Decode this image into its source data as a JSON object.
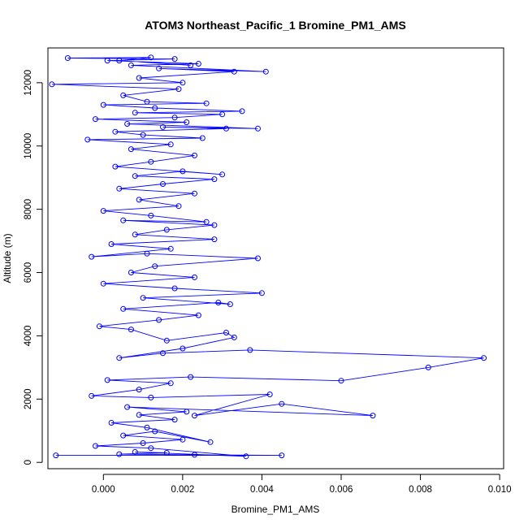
{
  "chart_data": {
    "type": "line",
    "title": "ATOM3 Northeast_Pacific_1 Bromine_PM1_AMS",
    "xlabel": "Bromine_PM1_AMS",
    "ylabel": "Altitude (m)",
    "xlim": [
      -0.0014,
      0.0101
    ],
    "ylim": [
      -200,
      13100
    ],
    "xticks": [
      0,
      0.002,
      0.004,
      0.006,
      0.008,
      0.01
    ],
    "xtick_labels": [
      "0.000",
      "0.002",
      "0.004",
      "0.006",
      "0.008",
      "0.010"
    ],
    "yticks": [
      0,
      2000,
      4000,
      6000,
      8000,
      10000,
      12000
    ],
    "ytick_labels": [
      "0",
      "2000",
      "4000",
      "6000",
      "8000",
      "10000",
      "12000"
    ],
    "grid": false,
    "legend": "none",
    "marker": "open-circle",
    "series_color": "#0000ff",
    "series": [
      {
        "points": [
          [
            -0.0012,
            220
          ],
          [
            0.0045,
            220
          ],
          [
            0.0023,
            240
          ],
          [
            0.0004,
            260
          ],
          [
            0.0016,
            300
          ],
          [
            0.0008,
            330
          ],
          [
            0.0036,
            190
          ],
          [
            0.0012,
            450
          ],
          [
            -0.0002,
            520
          ],
          [
            0.001,
            610
          ],
          [
            0.002,
            720
          ],
          [
            0.0005,
            850
          ],
          [
            0.0013,
            980
          ],
          [
            0.0027,
            640
          ],
          [
            0.0011,
            1100
          ],
          [
            0.0002,
            1250
          ],
          [
            0.0018,
            1350
          ],
          [
            0.0009,
            1500
          ],
          [
            0.0021,
            1600
          ],
          [
            0.0006,
            1750
          ],
          [
            0.0068,
            1480
          ],
          [
            0.0045,
            1850
          ],
          [
            0.0023,
            1480
          ],
          [
            0.0042,
            2150
          ],
          [
            0.0012,
            2050
          ],
          [
            -0.0003,
            2100
          ],
          [
            0.0009,
            2300
          ],
          [
            0.0017,
            2500
          ],
          [
            0.0001,
            2600
          ],
          [
            0.0022,
            2700
          ],
          [
            0.006,
            2580
          ],
          [
            0.0082,
            3000
          ],
          [
            0.0096,
            3300
          ],
          [
            0.0037,
            3550
          ],
          [
            0.0015,
            3450
          ],
          [
            0.0004,
            3300
          ],
          [
            0.002,
            3600
          ],
          [
            0.0033,
            3950
          ],
          [
            0.0031,
            4100
          ],
          [
            0.0016,
            3850
          ],
          [
            0.0007,
            4200
          ],
          [
            -0.0001,
            4300
          ],
          [
            0.0014,
            4500
          ],
          [
            0.0024,
            4650
          ],
          [
            0.0005,
            4850
          ],
          [
            0.0029,
            5050
          ],
          [
            0.0032,
            5000
          ],
          [
            0.001,
            5200
          ],
          [
            0.004,
            5350
          ],
          [
            0.0018,
            5500
          ],
          [
            0.0,
            5650
          ],
          [
            0.0023,
            5850
          ],
          [
            0.0007,
            6000
          ],
          [
            0.0013,
            6200
          ],
          [
            0.0039,
            6450
          ],
          [
            0.0011,
            6600
          ],
          [
            -0.0003,
            6500
          ],
          [
            0.0017,
            6750
          ],
          [
            0.0002,
            6900
          ],
          [
            0.0028,
            7050
          ],
          [
            0.0008,
            7200
          ],
          [
            0.0016,
            7350
          ],
          [
            0.0028,
            7500
          ],
          [
            0.0005,
            7650
          ],
          [
            0.0026,
            7600
          ],
          [
            0.0012,
            7800
          ],
          [
            0.0,
            7950
          ],
          [
            0.0019,
            8100
          ],
          [
            0.0009,
            8300
          ],
          [
            0.0023,
            8500
          ],
          [
            0.0004,
            8650
          ],
          [
            0.0015,
            8800
          ],
          [
            0.0028,
            8950
          ],
          [
            0.0008,
            9050
          ],
          [
            0.002,
            9200
          ],
          [
            0.003,
            9100
          ],
          [
            0.0003,
            9350
          ],
          [
            0.0012,
            9500
          ],
          [
            0.0023,
            9700
          ],
          [
            0.0007,
            9900
          ],
          [
            0.0017,
            10050
          ],
          [
            -0.0004,
            10200
          ],
          [
            0.0025,
            10250
          ],
          [
            0.001,
            10350
          ],
          [
            0.0003,
            10450
          ],
          [
            0.0031,
            10550
          ],
          [
            0.0015,
            10600
          ],
          [
            0.0039,
            10550
          ],
          [
            0.0006,
            10700
          ],
          [
            0.0021,
            10750
          ],
          [
            -0.0002,
            10850
          ],
          [
            0.0018,
            10900
          ],
          [
            0.003,
            11000
          ],
          [
            0.0008,
            11050
          ],
          [
            0.0035,
            11100
          ],
          [
            0.0013,
            11200
          ],
          [
            0.0,
            11300
          ],
          [
            0.0026,
            11350
          ],
          [
            0.0011,
            11400
          ],
          [
            0.0005,
            11600
          ],
          [
            0.0019,
            11800
          ],
          [
            -0.0013,
            11950
          ],
          [
            0.002,
            12000
          ],
          [
            0.0009,
            12150
          ],
          [
            0.0033,
            12350
          ],
          [
            0.0014,
            12450
          ],
          [
            0.0041,
            12350
          ],
          [
            0.0007,
            12550
          ],
          [
            0.0024,
            12600
          ],
          [
            0.0001,
            12700
          ],
          [
            0.0018,
            12750
          ],
          [
            -0.0009,
            12780
          ],
          [
            0.0012,
            12800
          ],
          [
            0.0004,
            12700
          ],
          [
            0.0022,
            12550
          ]
        ]
      }
    ]
  }
}
